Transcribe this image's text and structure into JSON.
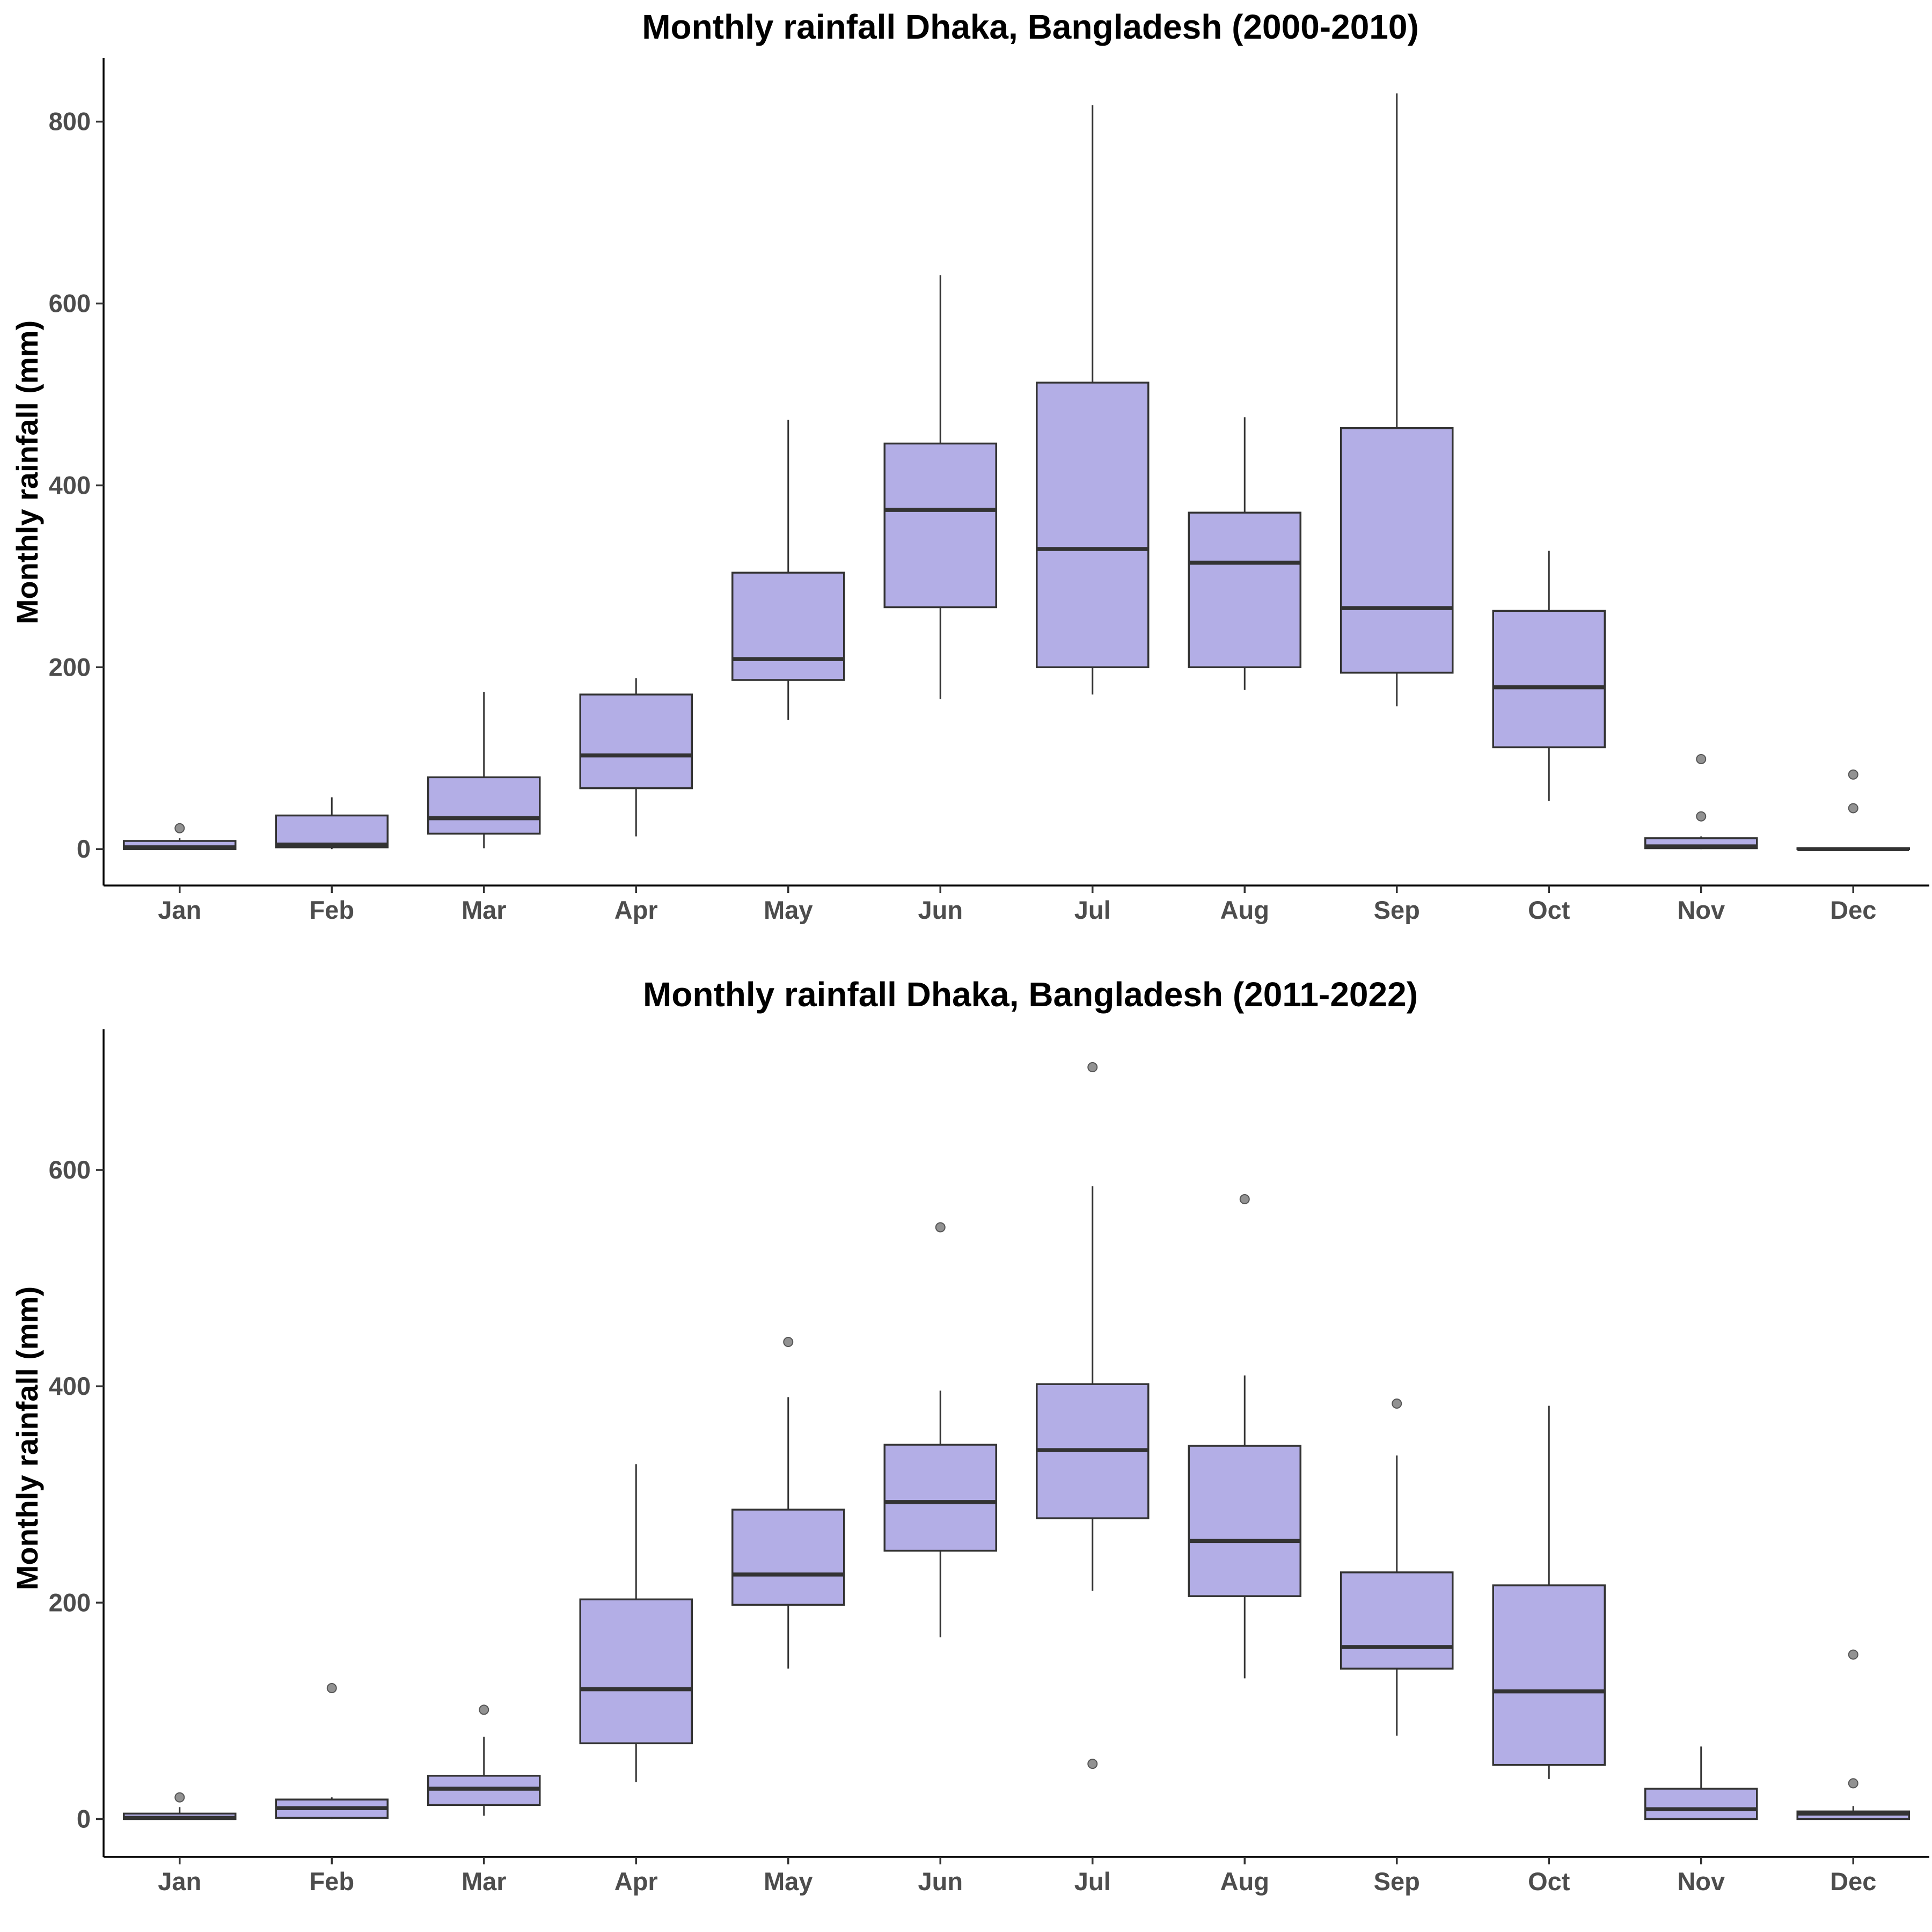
{
  "colors": {
    "box_fill": "#b3aee6",
    "box_stroke": "#333333",
    "outlier": "#7f7f7f",
    "tick_label": "#4d4d4d"
  },
  "chart_data": [
    {
      "type": "box",
      "title": "Monthly rainfall Dhaka, Bangladesh (2000-2010)",
      "xlabel": "",
      "ylabel": "Monthly rainfall (mm)",
      "ylim": [
        -40,
        870
      ],
      "yticks": [
        0,
        200,
        400,
        600,
        800
      ],
      "grid": false,
      "categories": [
        "Jan",
        "Feb",
        "Mar",
        "Apr",
        "May",
        "Jun",
        "Jul",
        "Aug",
        "Sep",
        "Oct",
        "Nov",
        "Dec"
      ],
      "boxes": [
        {
          "min": 0,
          "q1": 0,
          "median": 2,
          "q3": 9,
          "max": 12,
          "outliers": [
            23
          ]
        },
        {
          "min": 0,
          "q1": 2,
          "median": 5,
          "q3": 37,
          "max": 57,
          "outliers": []
        },
        {
          "min": 1,
          "q1": 17,
          "median": 34,
          "q3": 79,
          "max": 173,
          "outliers": []
        },
        {
          "min": 14,
          "q1": 67,
          "median": 103,
          "q3": 170,
          "max": 188,
          "outliers": []
        },
        {
          "min": 142,
          "q1": 186,
          "median": 209,
          "q3": 304,
          "max": 472,
          "outliers": []
        },
        {
          "min": 165,
          "q1": 266,
          "median": 373,
          "q3": 446,
          "max": 631,
          "outliers": []
        },
        {
          "min": 170,
          "q1": 200,
          "median": 330,
          "q3": 513,
          "max": 818,
          "outliers": []
        },
        {
          "min": 175,
          "q1": 200,
          "median": 315,
          "q3": 370,
          "max": 475,
          "outliers": []
        },
        {
          "min": 157,
          "q1": 194,
          "median": 265,
          "q3": 463,
          "max": 831,
          "outliers": []
        },
        {
          "min": 53,
          "q1": 112,
          "median": 178,
          "q3": 262,
          "max": 328,
          "outliers": []
        },
        {
          "min": 0,
          "q1": 1,
          "median": 3,
          "q3": 12,
          "max": 14,
          "outliers": [
            36,
            99
          ]
        },
        {
          "min": 0,
          "q1": 0,
          "median": 0,
          "q3": 1,
          "max": 1,
          "outliers": [
            45,
            82
          ]
        }
      ]
    },
    {
      "type": "box",
      "title": "Monthly rainfall Dhaka, Bangladesh (2011-2022)",
      "xlabel": "",
      "ylabel": "Monthly rainfall (mm)",
      "ylim": [
        -35,
        730
      ],
      "yticks": [
        0,
        200,
        400,
        600
      ],
      "grid": false,
      "categories": [
        "Jan",
        "Feb",
        "Mar",
        "Apr",
        "May",
        "Jun",
        "Jul",
        "Aug",
        "Sep",
        "Oct",
        "Nov",
        "Dec"
      ],
      "boxes": [
        {
          "min": 0,
          "q1": 0,
          "median": 1,
          "q3": 5,
          "max": 11,
          "outliers": [
            20
          ]
        },
        {
          "min": 0,
          "q1": 1,
          "median": 10,
          "q3": 18,
          "max": 20,
          "outliers": [
            121
          ]
        },
        {
          "min": 3,
          "q1": 13,
          "median": 28,
          "q3": 40,
          "max": 76,
          "outliers": [
            101
          ]
        },
        {
          "min": 34,
          "q1": 70,
          "median": 120,
          "q3": 203,
          "max": 328,
          "outliers": []
        },
        {
          "min": 139,
          "q1": 198,
          "median": 226,
          "q3": 286,
          "max": 390,
          "outliers": [
            441
          ]
        },
        {
          "min": 168,
          "q1": 248,
          "median": 293,
          "q3": 346,
          "max": 396,
          "outliers": [
            547
          ]
        },
        {
          "min": 211,
          "q1": 278,
          "median": 341,
          "q3": 402,
          "max": 585,
          "outliers": [
            51,
            695
          ]
        },
        {
          "min": 130,
          "q1": 206,
          "median": 257,
          "q3": 345,
          "max": 410,
          "outliers": [
            573
          ]
        },
        {
          "min": 77,
          "q1": 139,
          "median": 159,
          "q3": 228,
          "max": 336,
          "outliers": [
            384
          ]
        },
        {
          "min": 37,
          "q1": 50,
          "median": 118,
          "q3": 216,
          "max": 382,
          "outliers": []
        },
        {
          "min": 0,
          "q1": 0,
          "median": 9,
          "q3": 28,
          "max": 67,
          "outliers": []
        },
        {
          "min": 0,
          "q1": 0,
          "median": 5,
          "q3": 7,
          "max": 12,
          "outliers": [
            33,
            152
          ]
        }
      ]
    }
  ]
}
